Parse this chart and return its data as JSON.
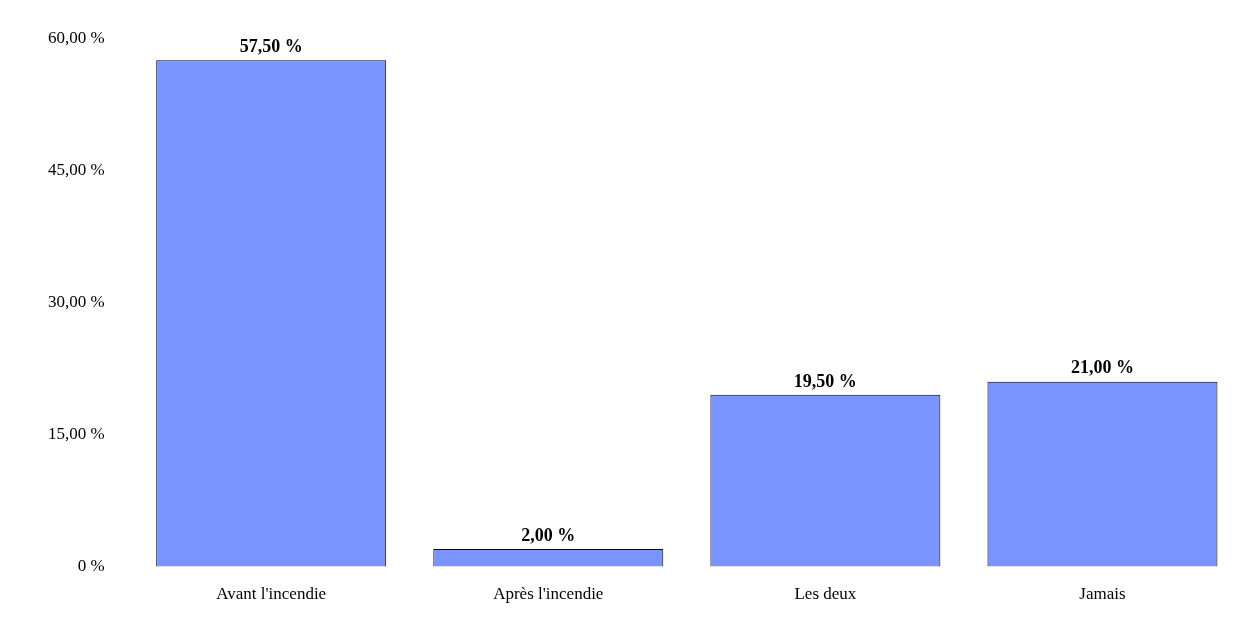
{
  "chart_data": {
    "type": "bar",
    "categories": [
      "Avant l'incendie",
      "Après l'incendie",
      "Les deux",
      "Jamais"
    ],
    "values": [
      57.5,
      2,
      19.5,
      21
    ],
    "value_labels": [
      "57,50 %",
      "2,00 %",
      "19,50 %",
      "21,00 %"
    ],
    "color": "#7a94ff",
    "ylim": [
      0,
      60
    ],
    "yticks": [
      {
        "value": 0,
        "label": "0 %"
      },
      {
        "value": 15,
        "label": "15,00 %"
      },
      {
        "value": 30,
        "label": "30,00 %"
      },
      {
        "value": 45,
        "label": "45,00 %"
      },
      {
        "value": 60,
        "label": "60,00 %"
      }
    ],
    "grid": false,
    "legend": false
  }
}
